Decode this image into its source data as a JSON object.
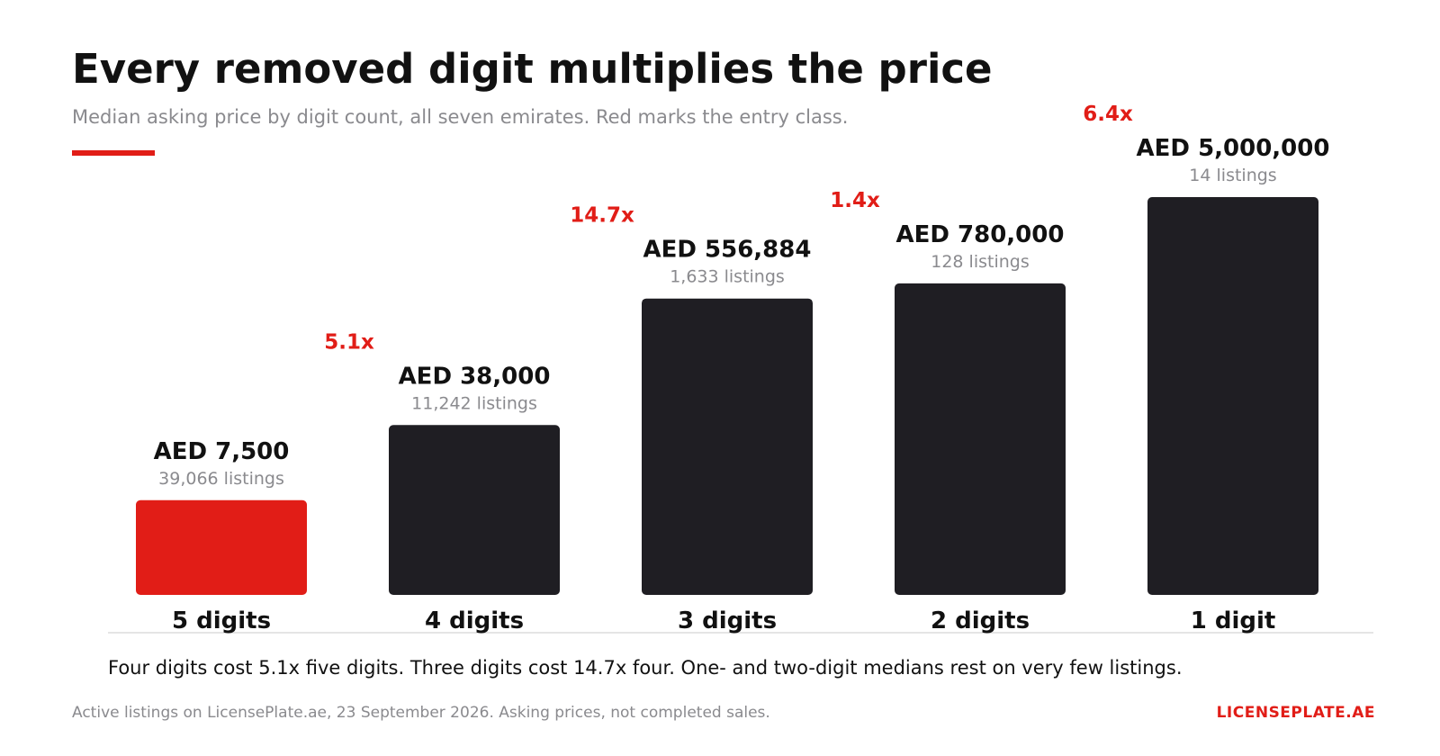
{
  "header": {
    "title": "Every removed digit multiplies the price",
    "subtitle": "Median asking price by digit count, all seven emirates. Red marks the entry class."
  },
  "chart_data": {
    "type": "bar",
    "categories": [
      "5 digits",
      "4 digits",
      "3 digits",
      "2 digits",
      "1 digit"
    ],
    "values": [
      7500,
      38000,
      556884,
      780000,
      5000000
    ],
    "value_labels": [
      "AED 7,500",
      "AED 38,000",
      "AED 556,884",
      "AED 780,000",
      "AED 5,000,000"
    ],
    "listings": [
      "39,066 listings",
      "11,242 listings",
      "1,633 listings",
      "128 listings",
      "14 listings"
    ],
    "multipliers": [
      "",
      "5.1x",
      "14.7x",
      "1.4x",
      "6.4x"
    ],
    "highlight_index": 0,
    "scale": "nonlinear (bar heights not proportional to values)",
    "bar_levels": [
      0.238,
      0.427,
      0.745,
      0.783,
      1.0
    ],
    "grid": false,
    "legend": "none",
    "colors": {
      "highlight": "#e11d17",
      "bar": "#1f1e23",
      "muted_text": "#8a8a8e",
      "axis": "#e5e5e5"
    }
  },
  "footer": {
    "caption": "Four digits cost 5.1x five digits. Three digits cost 14.7x four. One- and two-digit medians rest on very few listings.",
    "source": "Active listings on LicensePlate.ae, 23 September 2026. Asking prices, not completed sales.",
    "brand": "LICENSEPLATE.AE"
  }
}
